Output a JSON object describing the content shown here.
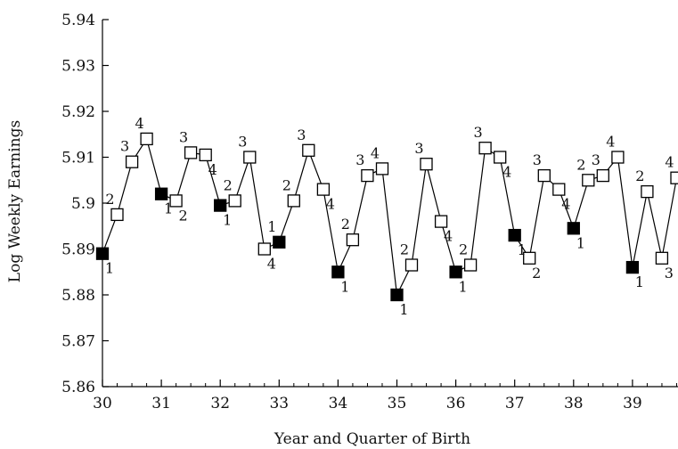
{
  "chart_data": {
    "type": "line",
    "title": "",
    "xlabel": "Year and Quarter of Birth",
    "ylabel": "Log Weekly Earnings",
    "xlim": [
      30,
      39.75
    ],
    "ylim": [
      5.86,
      5.94
    ],
    "x_ticks": [
      "30",
      "31",
      "32",
      "33",
      "34",
      "35",
      "36",
      "37",
      "38",
      "39"
    ],
    "y_ticks": [
      "5.86",
      "5.87",
      "5.88",
      "5.89",
      "5.9",
      "5.91",
      "5.92",
      "5.93",
      "5.94"
    ],
    "grid": false,
    "legend": "none",
    "marker_colors": {
      "quarter_1": "#000000",
      "other_quarters": "#ffffff"
    },
    "line_color": "#000000",
    "points": [
      {
        "x": 30.0,
        "y": 5.889,
        "quarter": "1"
      },
      {
        "x": 30.25,
        "y": 5.8975,
        "quarter": "2"
      },
      {
        "x": 30.5,
        "y": 5.909,
        "quarter": "3"
      },
      {
        "x": 30.75,
        "y": 5.914,
        "quarter": "4"
      },
      {
        "x": 31.0,
        "y": 5.902,
        "quarter": "1"
      },
      {
        "x": 31.25,
        "y": 5.9005,
        "quarter": "2"
      },
      {
        "x": 31.5,
        "y": 5.911,
        "quarter": "3"
      },
      {
        "x": 31.75,
        "y": 5.9105,
        "quarter": "4"
      },
      {
        "x": 32.0,
        "y": 5.8995,
        "quarter": "1"
      },
      {
        "x": 32.25,
        "y": 5.9005,
        "quarter": "2"
      },
      {
        "x": 32.5,
        "y": 5.91,
        "quarter": "3"
      },
      {
        "x": 32.75,
        "y": 5.89,
        "quarter": "4"
      },
      {
        "x": 33.0,
        "y": 5.8915,
        "quarter": "1"
      },
      {
        "x": 33.25,
        "y": 5.9005,
        "quarter": "2"
      },
      {
        "x": 33.5,
        "y": 5.9115,
        "quarter": "3"
      },
      {
        "x": 33.75,
        "y": 5.903,
        "quarter": "4"
      },
      {
        "x": 34.0,
        "y": 5.885,
        "quarter": "1"
      },
      {
        "x": 34.25,
        "y": 5.892,
        "quarter": "2"
      },
      {
        "x": 34.5,
        "y": 5.906,
        "quarter": "3"
      },
      {
        "x": 34.75,
        "y": 5.9075,
        "quarter": "4"
      },
      {
        "x": 35.0,
        "y": 5.88,
        "quarter": "1"
      },
      {
        "x": 35.25,
        "y": 5.8865,
        "quarter": "2"
      },
      {
        "x": 35.5,
        "y": 5.9085,
        "quarter": "3"
      },
      {
        "x": 35.75,
        "y": 5.896,
        "quarter": "4"
      },
      {
        "x": 36.0,
        "y": 5.885,
        "quarter": "1"
      },
      {
        "x": 36.25,
        "y": 5.8865,
        "quarter": "2"
      },
      {
        "x": 36.5,
        "y": 5.912,
        "quarter": "3"
      },
      {
        "x": 36.75,
        "y": 5.91,
        "quarter": "4"
      },
      {
        "x": 37.0,
        "y": 5.893,
        "quarter": "1"
      },
      {
        "x": 37.25,
        "y": 5.888,
        "quarter": "2"
      },
      {
        "x": 37.5,
        "y": 5.906,
        "quarter": "3"
      },
      {
        "x": 37.75,
        "y": 5.903,
        "quarter": "4"
      },
      {
        "x": 38.0,
        "y": 5.8945,
        "quarter": "1"
      },
      {
        "x": 38.25,
        "y": 5.905,
        "quarter": "2"
      },
      {
        "x": 38.5,
        "y": 5.906,
        "quarter": "3"
      },
      {
        "x": 38.75,
        "y": 5.91,
        "quarter": "4"
      },
      {
        "x": 39.0,
        "y": 5.886,
        "quarter": "1"
      },
      {
        "x": 39.25,
        "y": 5.9025,
        "quarter": "2"
      },
      {
        "x": 39.5,
        "y": 5.888,
        "quarter": "3"
      },
      {
        "x": 39.75,
        "y": 5.9055,
        "quarter": "4"
      }
    ]
  }
}
